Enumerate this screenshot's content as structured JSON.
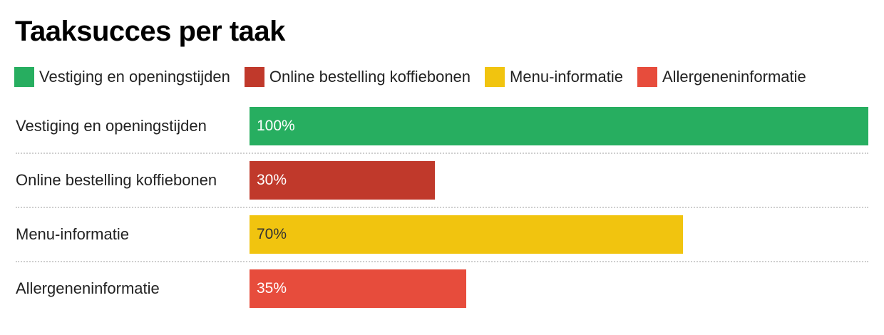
{
  "title": "Taaksucces per taak",
  "legend": [
    {
      "label": "Vestiging en openingstijden",
      "color": "#27ae60"
    },
    {
      "label": "Online bestelling koffiebonen",
      "color": "#c0392b"
    },
    {
      "label": "Menu-informatie",
      "color": "#f1c40f"
    },
    {
      "label": "Allergeneninformatie",
      "color": "#e74c3c"
    }
  ],
  "rows": [
    {
      "label": "Vestiging en openingstijden",
      "value": 100,
      "value_label": "100%",
      "color": "#27ae60",
      "text_color": "#ffffff"
    },
    {
      "label": "Online bestelling koffiebonen",
      "value": 30,
      "value_label": "30%",
      "color": "#c0392b",
      "text_color": "#ffffff"
    },
    {
      "label": "Menu-informatie",
      "value": 70,
      "value_label": "70%",
      "color": "#f1c40f",
      "text_color": "#333333"
    },
    {
      "label": "Allergeneninformatie",
      "value": 35,
      "value_label": "35%",
      "color": "#e74c3c",
      "text_color": "#ffffff"
    }
  ],
  "chart_data": {
    "type": "bar",
    "orientation": "horizontal",
    "title": "Taaksucces per taak",
    "categories": [
      "Vestiging en openingstijden",
      "Online bestelling koffiebonen",
      "Menu-informatie",
      "Allergeneninformatie"
    ],
    "values": [
      100,
      30,
      70,
      35
    ],
    "value_labels": [
      "100%",
      "30%",
      "70%",
      "35%"
    ],
    "colors": [
      "#27ae60",
      "#c0392b",
      "#f1c40f",
      "#e74c3c"
    ],
    "xlabel": "",
    "ylabel": "",
    "xlim": [
      0,
      100
    ],
    "unit": "%",
    "grid": false,
    "row_separators": "dotted",
    "legend_position": "top",
    "legend": [
      "Vestiging en openingstijden",
      "Online bestelling koffiebonen",
      "Menu-informatie",
      "Allergeneninformatie"
    ]
  }
}
